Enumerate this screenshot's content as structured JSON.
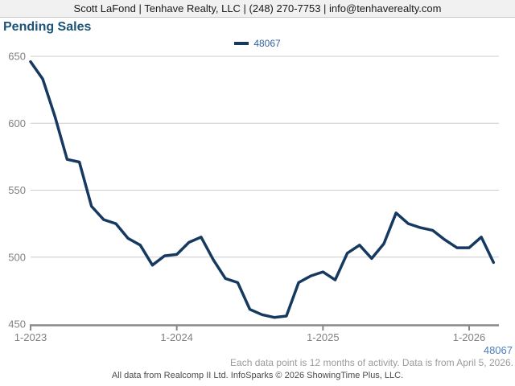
{
  "header": {
    "contact_line": "Scott LaFond | Tenhave Realty, LLC | (248) 270-7753 | info@tenhaverealty.com"
  },
  "title": "Pending Sales",
  "legend": {
    "label": "48067"
  },
  "annotations": {
    "series_label_bottom_right": "48067"
  },
  "footer": {
    "note": "Each data point is 12 months of activity. Data is from April 5, 2026.",
    "attribution": "All data from Realcomp II Ltd. InfoSparks © 2026 ShowingTime Plus, LLC."
  },
  "colors": {
    "line": "#16395f",
    "title": "#1b5379",
    "legend_label": "#33639c",
    "series_tag": "#4a7dbd",
    "axis_labels": "#808080",
    "gridline": "#cccccc",
    "axis_line": "#888888",
    "header_bg": "#f1f1f1"
  },
  "chart_data": {
    "type": "line",
    "title": "Pending Sales",
    "x": [
      "1-2023",
      "2-2023",
      "3-2023",
      "4-2023",
      "5-2023",
      "6-2023",
      "7-2023",
      "8-2023",
      "9-2023",
      "10-2023",
      "11-2023",
      "12-2023",
      "1-2024",
      "2-2024",
      "3-2024",
      "4-2024",
      "5-2024",
      "6-2024",
      "7-2024",
      "8-2024",
      "9-2024",
      "10-2024",
      "11-2024",
      "12-2024",
      "1-2025",
      "2-2025",
      "3-2025",
      "4-2025",
      "5-2025",
      "6-2025",
      "7-2025",
      "8-2025",
      "9-2025",
      "10-2025",
      "11-2025",
      "12-2025",
      "1-2026",
      "2-2026",
      "3-2026"
    ],
    "series": [
      {
        "name": "48067",
        "color": "#16395f",
        "values": [
          646,
          633,
          605,
          573,
          571,
          538,
          528,
          525,
          514,
          509,
          494,
          501,
          502,
          511,
          515,
          498,
          484,
          481,
          461,
          457,
          455,
          456,
          481,
          486,
          489,
          483,
          503,
          509,
          499,
          510,
          533,
          525,
          522,
          520,
          513,
          507,
          507,
          515,
          496
        ]
      }
    ],
    "xticks": [
      "1-2023",
      "1-2024",
      "1-2025",
      "1-2026"
    ],
    "yticks": [
      450,
      500,
      550,
      600,
      650
    ],
    "ylim": [
      450,
      650
    ],
    "grid": "horizontal-only",
    "legend_position": "top-center"
  }
}
